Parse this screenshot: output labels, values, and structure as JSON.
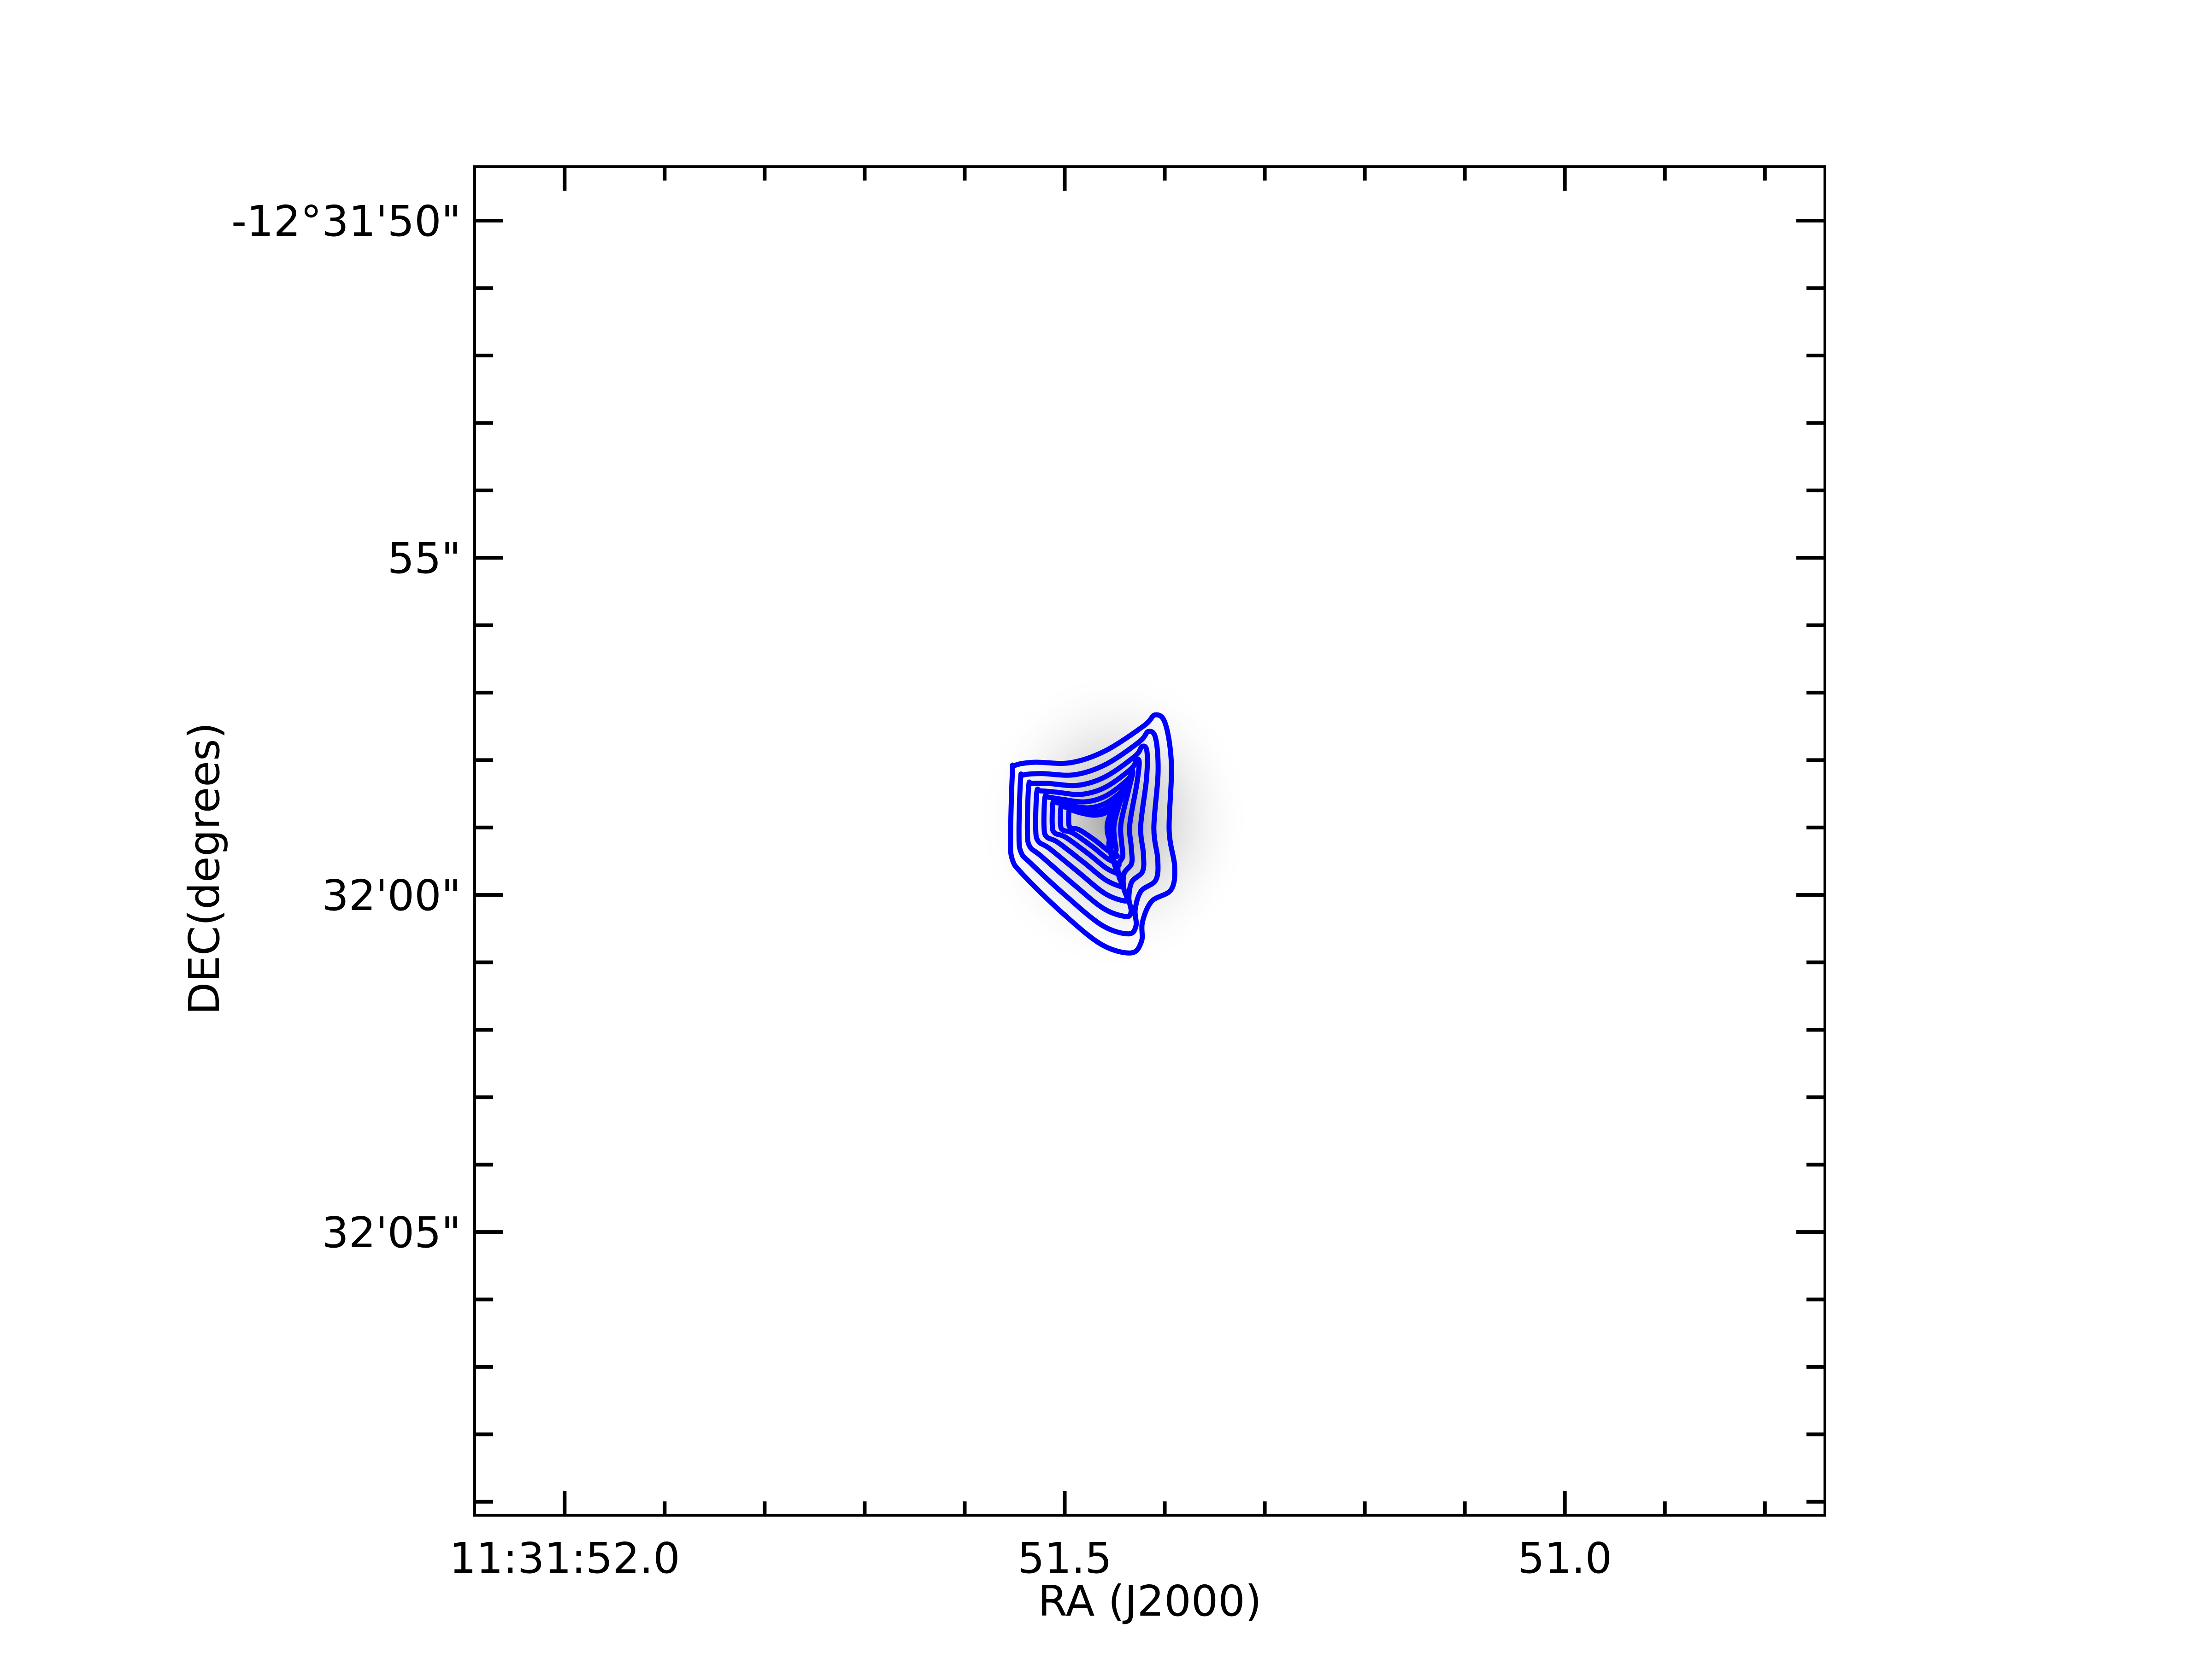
{
  "chart_data": {
    "type": "contour",
    "title": "",
    "xlabel": "RA (J2000)",
    "ylabel": "DEC(degrees)",
    "x_ticks": [
      {
        "value": 52.0,
        "label": "11:31:52.0"
      },
      {
        "value": 51.5,
        "label": "51.5"
      },
      {
        "value": 51.0,
        "label": "51.0"
      }
    ],
    "y_ticks": [
      {
        "value": 50,
        "label": "-12°31'50\""
      },
      {
        "value": 55,
        "label": "55\""
      },
      {
        "value": 60,
        "label": "32'00\""
      },
      {
        "value": 65,
        "label": "32'05\""
      }
    ],
    "xlim": [
      52.09,
      50.74
    ],
    "ylim": [
      49.2,
      69.2
    ],
    "x_minor_step": 0.1,
    "y_minor_step": 1,
    "x_unit": "seconds of RA past 11h31m",
    "y_unit": "arcsec of DEC below -12°31'00\"",
    "source_peak": {
      "ra": 51.45,
      "dec": 58.9
    },
    "contour_color": "#0000ff",
    "contour_levels": 8,
    "background": "grayscale image",
    "grid": false
  }
}
